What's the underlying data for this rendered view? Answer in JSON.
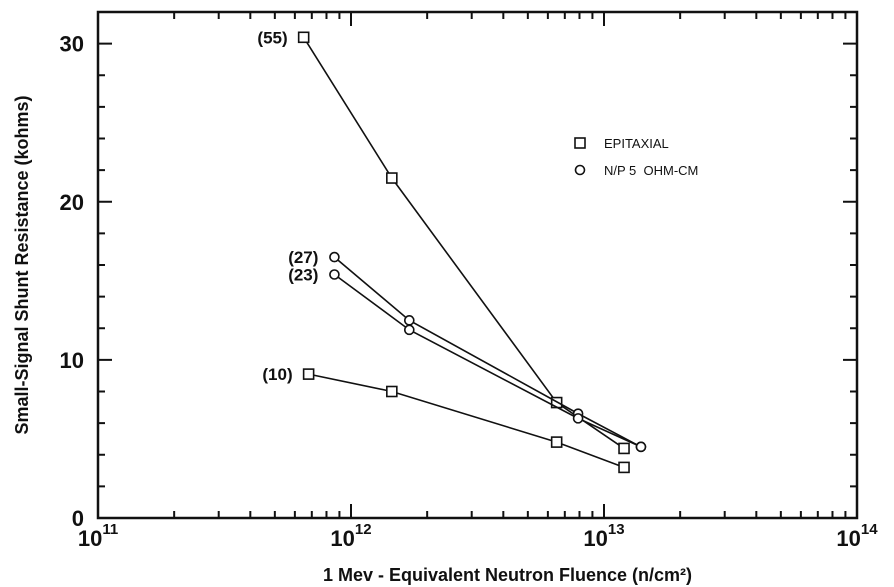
{
  "chart_data": {
    "type": "line",
    "xscale": "log",
    "xlim": [
      100000000000.0,
      100000000000000.0
    ],
    "ylim": [
      0,
      32
    ],
    "grid": false,
    "xlabel": "1 Mev - Equivalent Neutron Fluence (n/cm²)",
    "ylabel": "Small-Signal Shunt Resistance (kohms)",
    "x_ticks": [
      {
        "base": "10",
        "exp": "11",
        "value": 100000000000.0
      },
      {
        "base": "10",
        "exp": "12",
        "value": 1000000000000.0
      },
      {
        "base": "10",
        "exp": "13",
        "value": 10000000000000.0
      },
      {
        "base": "10",
        "exp": "14",
        "value": 100000000000000.0
      }
    ],
    "y_ticks": [
      {
        "label": "0",
        "value": 0
      },
      {
        "label": "10",
        "value": 10
      },
      {
        "label": "20",
        "value": 20
      },
      {
        "label": "30",
        "value": 30
      }
    ],
    "legend": {
      "placement": "top-right",
      "entries": [
        {
          "marker": "square",
          "label": "EPITAXIAL"
        },
        {
          "marker": "circle",
          "label": "N/P 5  OHM-CM"
        }
      ]
    },
    "series": [
      {
        "label": "(55)",
        "marker": "square",
        "x": [
          650000000000.0,
          1450000000000.0,
          6500000000000.0,
          12000000000000.0
        ],
        "y": [
          30.4,
          21.5,
          7.3,
          4.4
        ]
      },
      {
        "label": "(27)",
        "marker": "circle",
        "x": [
          860000000000.0,
          1700000000000.0,
          7900000000000.0,
          14000000000000.0
        ],
        "y": [
          16.5,
          12.5,
          6.6,
          4.5
        ]
      },
      {
        "label": "(23)",
        "marker": "circle",
        "x": [
          860000000000.0,
          1700000000000.0,
          7900000000000.0,
          14000000000000.0
        ],
        "y": [
          15.4,
          11.9,
          6.3,
          4.5
        ]
      },
      {
        "label": "(10)",
        "marker": "square",
        "x": [
          680000000000.0,
          1450000000000.0,
          6500000000000.0,
          12000000000000.0
        ],
        "y": [
          9.1,
          8.0,
          4.8,
          3.2
        ]
      }
    ]
  }
}
